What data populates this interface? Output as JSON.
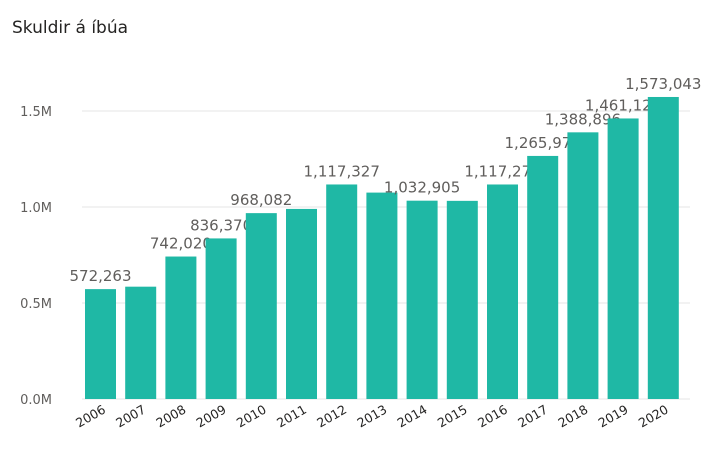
{
  "chart_data": {
    "type": "bar",
    "title": "Skuldir á íbúa",
    "xlabel": "",
    "ylabel": "",
    "categories": [
      "2006",
      "2007",
      "2008",
      "2009",
      "2010",
      "2011",
      "2012",
      "2013",
      "2014",
      "2015",
      "2016",
      "2017",
      "2018",
      "2019",
      "2020"
    ],
    "values": [
      572263,
      585000,
      742020,
      836370,
      968082,
      990000,
      1117327,
      1075000,
      1032905,
      1032000,
      1117273,
      1265978,
      1388896,
      1461126,
      1573043
    ],
    "data_labels": [
      "572,263",
      "",
      "742,020",
      "836,370",
      "968,082",
      "",
      "1,117,327",
      "",
      "1,032,905",
      "",
      "1,117,273",
      "1,265,978",
      "1,388,896",
      "1,461,126",
      "1,573,043"
    ],
    "ylim": [
      0,
      1600000
    ],
    "yticks": [
      0,
      500000,
      1000000,
      1500000
    ],
    "ytick_labels": [
      "0.0M",
      "0.5M",
      "1.0M",
      "1.5M"
    ],
    "grid": true,
    "bar_color": "#1fb8a5"
  }
}
